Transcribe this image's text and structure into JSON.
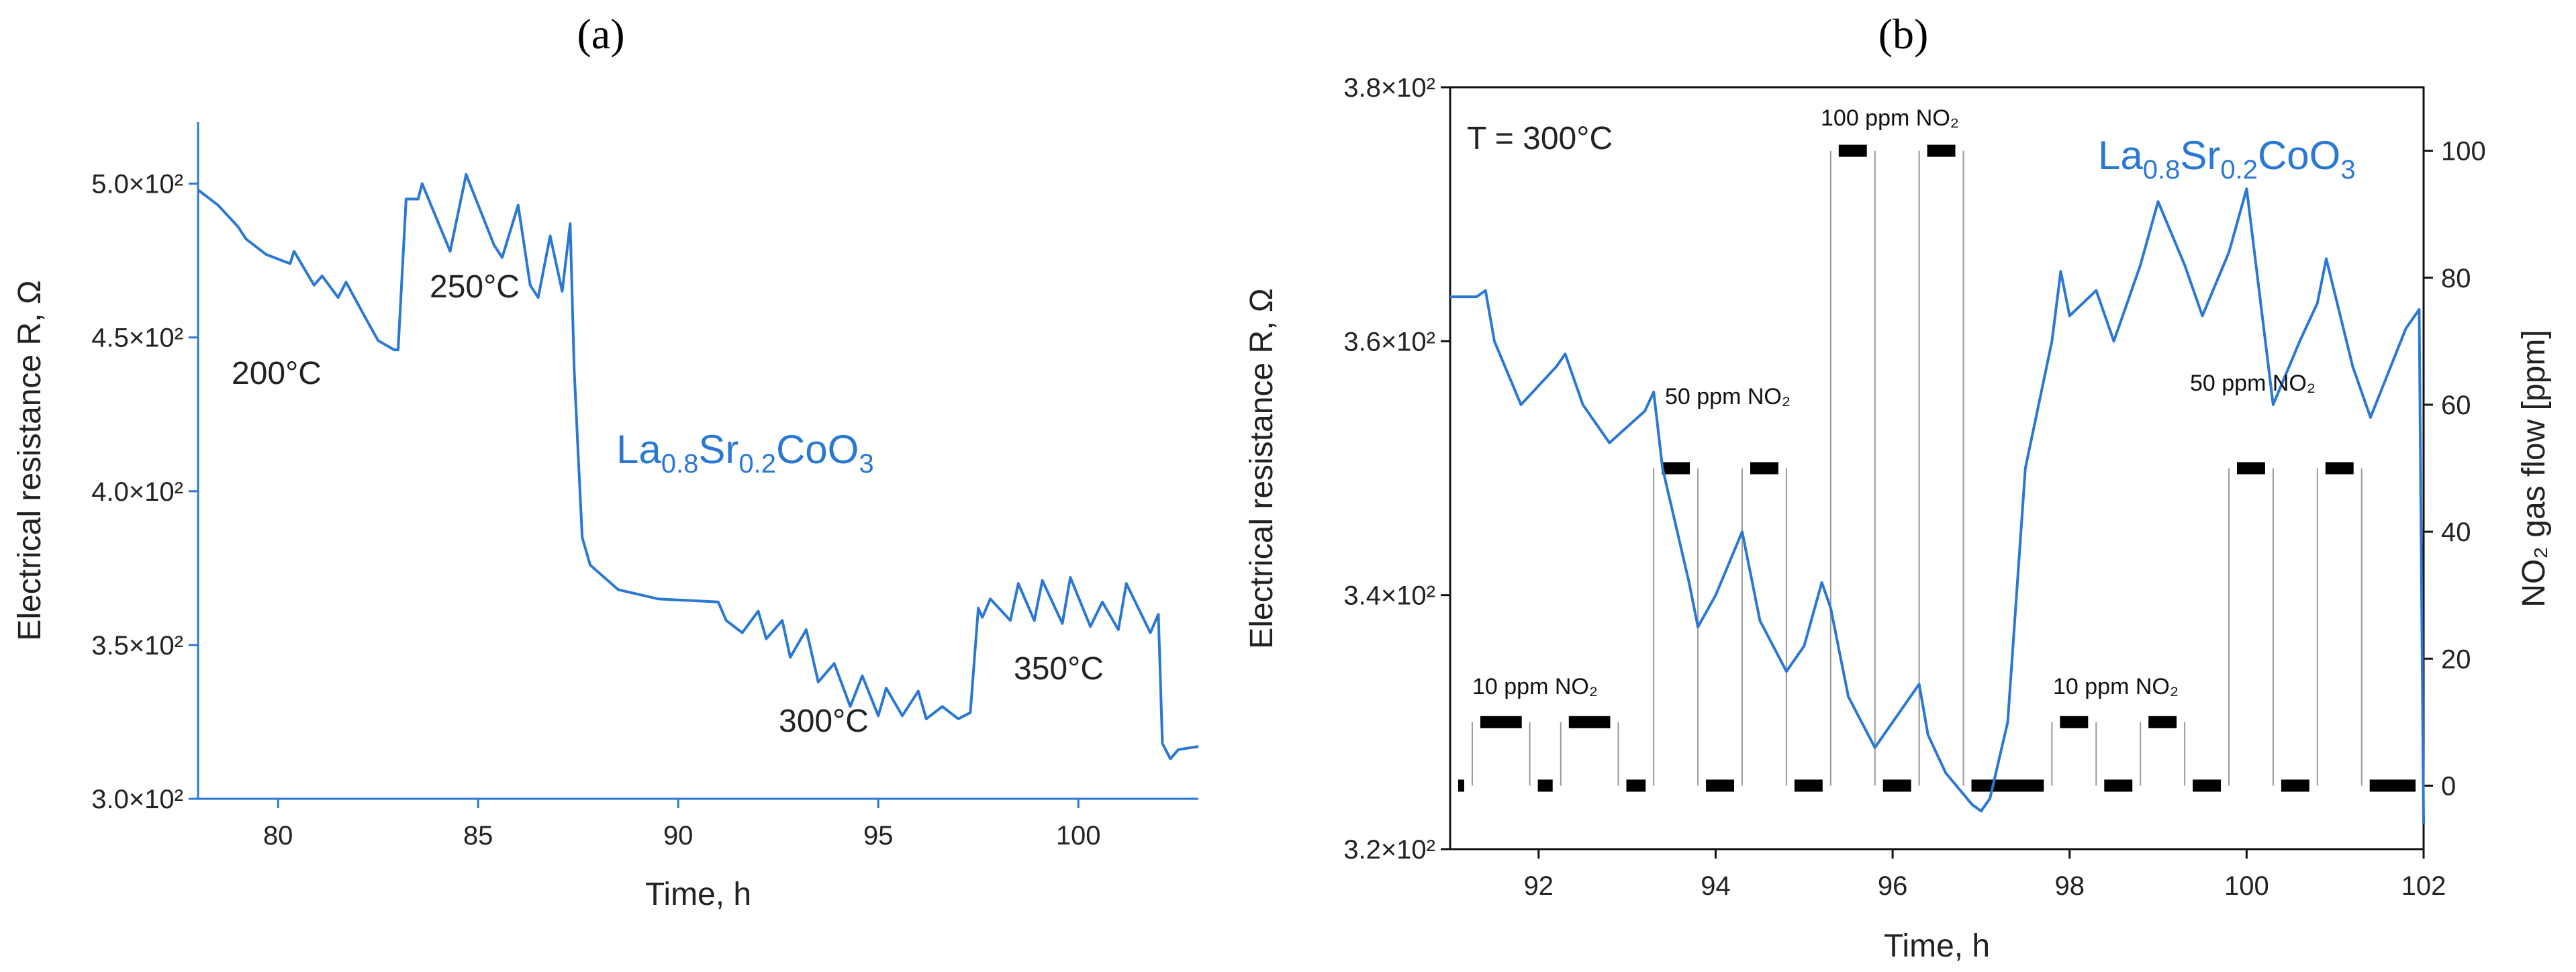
{
  "chart_data": [
    {
      "panel": "(a)",
      "type": "line",
      "title": "",
      "xlabel": "Time, h",
      "ylabel": "Electrical resistance R, Ω",
      "xlim": [
        78,
        103
      ],
      "ylim": [
        300,
        520
      ],
      "xticks": [
        80,
        85,
        90,
        95,
        100
      ],
      "yticks": [
        300,
        350,
        400,
        450,
        500
      ],
      "ytick_labels": [
        "3.0×10²",
        "3.5×10²",
        "4.0×10²",
        "4.5×10²",
        "5.0×10²"
      ],
      "series": [
        {
          "name": "La0.8Sr0.2CoO3",
          "color": "#2a78d2",
          "x": [
            78,
            78.5,
            79,
            79.2,
            79.7,
            80.3,
            80.4,
            80.9,
            81.1,
            81.5,
            81.7,
            82.2,
            82.5,
            82.9,
            83.0,
            83.2,
            83.5,
            83.6,
            84.3,
            84.7,
            85.4,
            85.6,
            86.0,
            86.3,
            86.5,
            86.8,
            87.1,
            87.3,
            87.4,
            87.5,
            87.6,
            87.8,
            88.5,
            89.5,
            91.0,
            91.2,
            91.6,
            92.0,
            92.2,
            92.6,
            92.8,
            93.2,
            93.5,
            93.9,
            94.3,
            94.6,
            95.0,
            95.2,
            95.6,
            96.0,
            96.2,
            96.6,
            97.0,
            97.3,
            97.5,
            97.6,
            97.8,
            98.3,
            98.5,
            98.9,
            99.1,
            99.6,
            99.8,
            100.3,
            100.6,
            101.0,
            101.2,
            101.8,
            102.0,
            102.1,
            102.3,
            102.5,
            103.0
          ],
          "y": [
            498,
            493,
            486,
            482,
            477,
            474,
            478,
            467,
            470,
            463,
            468,
            456,
            449,
            446,
            446,
            495,
            495,
            500,
            478,
            503,
            480,
            476,
            493,
            467,
            463,
            483,
            465,
            487,
            440,
            412,
            385,
            376,
            368,
            365,
            364,
            358,
            354,
            361,
            352,
            358,
            346,
            355,
            338,
            344,
            330,
            340,
            327,
            336,
            327,
            335,
            326,
            330,
            326,
            328,
            362,
            359,
            365,
            358,
            370,
            358,
            371,
            357,
            372,
            356,
            364,
            355,
            370,
            354,
            360,
            318,
            313,
            316,
            317
          ]
        }
      ],
      "annotations": [
        "200°C",
        "250°C",
        "300°C",
        "350°C"
      ],
      "compound": {
        "base": "La",
        "sub1": "0.8",
        "mid": "Sr",
        "sub2": "0.2",
        "tail": "CoO",
        "sub3": "3"
      }
    },
    {
      "panel": "(b)",
      "type": "line",
      "title": "",
      "xlabel": "Time, h",
      "ylabel": "Electrical resistance R, Ω",
      "ylabel_right": "NO₂ gas flow [ppm]",
      "xlim": [
        91,
        102
      ],
      "ylim": [
        320,
        380
      ],
      "ylim_right": [
        -10,
        110
      ],
      "xticks": [
        92,
        94,
        96,
        98,
        100,
        102
      ],
      "yticks": [
        320,
        340,
        360,
        380
      ],
      "ytick_labels": [
        "3.2×10²",
        "3.4×10²",
        "3.6×10²",
        "3.8×10²"
      ],
      "yticks_right": [
        0,
        20,
        40,
        60,
        80,
        100
      ],
      "series": [
        {
          "name": "La0.8Sr0.2CoO3",
          "color": "#2a78d2",
          "x": [
            91,
            91.3,
            91.4,
            91.5,
            91.8,
            92.2,
            92.3,
            92.5,
            92.8,
            93.2,
            93.3,
            93.4,
            93.7,
            93.8,
            94.0,
            94.3,
            94.5,
            94.8,
            95.0,
            95.2,
            95.3,
            95.5,
            95.8,
            96.1,
            96.3,
            96.4,
            96.6,
            96.9,
            97.0,
            97.1,
            97.3,
            97.5,
            97.8,
            97.9,
            98.0,
            98.3,
            98.5,
            98.8,
            99.0,
            99.3,
            99.5,
            99.8,
            100.0,
            100.3,
            100.6,
            100.8,
            100.9,
            101.2,
            101.4,
            101.8,
            101.95,
            102.0
          ],
          "y": [
            363.5,
            363.5,
            364.0,
            360.0,
            355.0,
            358.0,
            359.0,
            355.0,
            352.0,
            354.5,
            356.0,
            350.0,
            341.0,
            337.5,
            340.0,
            345.0,
            338.0,
            334.0,
            336.0,
            341.0,
            339.0,
            332.0,
            328.0,
            331.0,
            333.0,
            329.0,
            326.0,
            323.5,
            323.0,
            324.0,
            330.0,
            350.0,
            360.0,
            365.5,
            362.0,
            364.0,
            360.0,
            366.0,
            371.0,
            366.0,
            362.0,
            367.0,
            372.0,
            355.0,
            360.0,
            363.0,
            366.5,
            358.0,
            354.0,
            361.0,
            362.5,
            322.0
          ]
        }
      ],
      "gas_flow": {
        "x": [
          91.0,
          91.25,
          91.25,
          91.9,
          91.9,
          92.25,
          92.25,
          92.9,
          92.9,
          93.3,
          93.3,
          93.8,
          93.8,
          94.3,
          94.3,
          94.8,
          94.8,
          95.3,
          95.3,
          95.8,
          95.8,
          96.3,
          96.3,
          96.8,
          96.8,
          97.8,
          97.8,
          98.3,
          98.3,
          98.8,
          98.8,
          99.3,
          99.3,
          99.8,
          99.8,
          100.3,
          100.3,
          100.8,
          100.8,
          101.3,
          101.3,
          102.0
        ],
        "ppm": [
          0,
          0,
          10,
          10,
          0,
          0,
          10,
          10,
          0,
          0,
          50,
          50,
          0,
          0,
          50,
          50,
          0,
          0,
          100,
          100,
          0,
          0,
          100,
          100,
          0,
          0,
          10,
          10,
          0,
          0,
          10,
          10,
          0,
          0,
          50,
          50,
          0,
          0,
          50,
          50,
          0,
          0
        ]
      },
      "annotations": {
        "temperature": "T = 300°C",
        "label_10ppm": "10 ppm NO₂",
        "label_50ppm": "50 ppm NO₂",
        "label_100ppm": "100 ppm NO₂"
      },
      "compound": {
        "base": "La",
        "sub1": "0.8",
        "mid": "Sr",
        "sub2": "0.2",
        "tail": "CoO",
        "sub3": "3"
      }
    }
  ]
}
